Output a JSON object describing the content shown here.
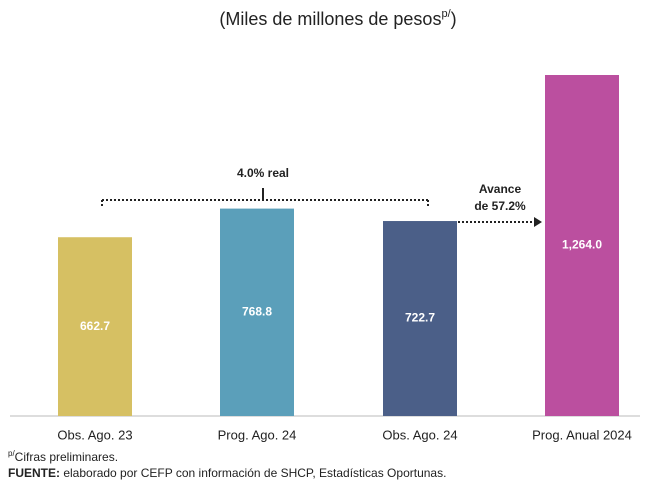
{
  "chart_data": {
    "type": "bar",
    "title": {
      "text": "(Miles de millones de pesos",
      "superscript": "p/",
      "close": ")"
    },
    "categories": [
      "Obs. Ago. 23",
      "Prog. Ago. 24",
      "Obs. Ago. 24",
      "Prog. Anual 2024"
    ],
    "values": [
      662.7,
      768.8,
      722.7,
      1264.0
    ],
    "value_labels": [
      "662.7",
      "768.8",
      "722.7",
      "1,264.0"
    ],
    "colors": [
      "#d6c063",
      "#5b9fba",
      "#4b5f88",
      "#bb4f9f"
    ],
    "annotations": [
      "4.0% real",
      "Avance",
      "de 57.2%"
    ],
    "notes": [
      {
        "superscript": "p/",
        "text": "Cifras preliminares."
      },
      {
        "bold": "FUENTE:",
        "text": " elaborado por CEFP con información de SHCP, Estadísticas Oportunas."
      }
    ]
  }
}
